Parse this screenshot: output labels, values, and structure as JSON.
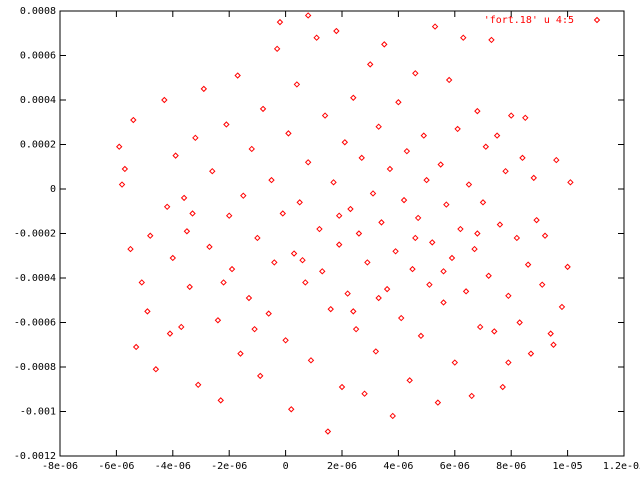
{
  "chart_data": {
    "type": "scatter",
    "series": [
      {
        "name": "'fort.18' u 4:5",
        "color": "#ff0000",
        "x": [
          -5.9e-06,
          -5.8e-06,
          -5.5e-06,
          -5.4e-06,
          -5.3e-06,
          -5.1e-06,
          -4.9e-06,
          -4.6e-06,
          -4.3e-06,
          -4.2e-06,
          -4e-06,
          -3.9e-06,
          -3.7e-06,
          -3.5e-06,
          -3.4e-06,
          -3.2e-06,
          -3.1e-06,
          -2.9e-06,
          -2.7e-06,
          -2.6e-06,
          -2.4e-06,
          -2.3e-06,
          -2.1e-06,
          -2e-06,
          -1.9e-06,
          -1.7e-06,
          -1.6e-06,
          -1.5e-06,
          -1.3e-06,
          -1.2e-06,
          -1e-06,
          -9e-07,
          -8e-07,
          -6e-07,
          -5e-07,
          -4e-07,
          -3e-07,
          -1e-07,
          0,
          1e-07,
          2e-07,
          3e-07,
          4e-07,
          5e-07,
          7e-07,
          8e-07,
          9e-07,
          1.1e-06,
          1.2e-06,
          1.3e-06,
          1.4e-06,
          1.5e-06,
          1.6e-06,
          1.7e-06,
          1.8e-06,
          1.9e-06,
          2e-06,
          2.1e-06,
          2.2e-06,
          2.3e-06,
          2.4e-06,
          2.5e-06,
          2.6e-06,
          2.7e-06,
          2.8e-06,
          2.9e-06,
          3e-06,
          3.1e-06,
          3.2e-06,
          3.3e-06,
          3.4e-06,
          3.5e-06,
          3.6e-06,
          3.7e-06,
          3.8e-06,
          3.9e-06,
          4e-06,
          4.1e-06,
          4.2e-06,
          4.3e-06,
          4.4e-06,
          4.5e-06,
          4.6e-06,
          4.7e-06,
          4.8e-06,
          4.9e-06,
          5e-06,
          5.1e-06,
          5.2e-06,
          5.3e-06,
          5.4e-06,
          5.5e-06,
          5.6e-06,
          5.7e-06,
          5.8e-06,
          5.9e-06,
          6e-06,
          6.1e-06,
          6.2e-06,
          6.3e-06,
          6.4e-06,
          6.5e-06,
          6.6e-06,
          6.7e-06,
          6.8e-06,
          6.9e-06,
          7e-06,
          7.1e-06,
          7.2e-06,
          7.3e-06,
          7.4e-06,
          7.5e-06,
          7.6e-06,
          7.7e-06,
          7.8e-06,
          7.9e-06,
          8e-06,
          8.2e-06,
          8.3e-06,
          8.4e-06,
          8.5e-06,
          8.6e-06,
          8.7e-06,
          8.8e-06,
          8.9e-06,
          9.1e-06,
          9.2e-06,
          9.4e-06,
          9.6e-06,
          9.8e-06,
          1.01e-05,
          1e-05,
          -5.7e-06,
          -4.8e-06,
          -4.1e-06,
          -3.3e-06,
          -2.2e-06,
          -1.1e-06,
          6e-07,
          1.9e-06,
          3.3e-06,
          4.6e-06,
          5.6e-06,
          6.8e-06,
          -2e-07,
          8e-07,
          7.9e-06,
          9.5e-06,
          -3.6e-06,
          2.4e-06
        ],
        "values": [
          0.00019,
          2e-05,
          -0.00027,
          0.00031,
          -0.00071,
          -0.00042,
          -0.00055,
          -0.00081,
          0.0004,
          -8e-05,
          -0.00031,
          0.00015,
          -0.00062,
          -0.00019,
          -0.00044,
          0.00023,
          -0.00088,
          0.00045,
          -0.00026,
          8e-05,
          -0.00059,
          -0.00095,
          0.00029,
          -0.00012,
          -0.00036,
          0.00051,
          -0.00074,
          -3e-05,
          -0.00049,
          0.00018,
          -0.00022,
          -0.00084,
          0.00036,
          -0.00056,
          4e-05,
          -0.00033,
          0.00063,
          -0.00011,
          -0.00068,
          0.00025,
          -0.00099,
          -0.00029,
          0.00047,
          -6e-05,
          -0.00042,
          0.00012,
          -0.00077,
          0.00068,
          -0.00018,
          -0.00037,
          0.00033,
          -0.00109,
          -0.00054,
          3e-05,
          0.00071,
          -0.00025,
          -0.00089,
          0.00021,
          -0.00047,
          -9e-05,
          0.00041,
          -0.00063,
          -0.0002,
          0.00014,
          -0.00092,
          -0.00033,
          0.00056,
          -2e-05,
          -0.00073,
          0.00028,
          -0.00015,
          0.00065,
          -0.00045,
          9e-05,
          -0.00102,
          -0.00028,
          0.00039,
          -0.00058,
          -5e-05,
          0.00017,
          -0.00086,
          -0.00036,
          0.00052,
          -0.00013,
          -0.00066,
          0.00024,
          4e-05,
          -0.00043,
          -0.00024,
          0.00073,
          -0.00096,
          0.00011,
          -0.00051,
          -7e-05,
          0.00049,
          -0.00031,
          -0.00078,
          0.00027,
          -0.00018,
          0.00068,
          -0.00046,
          2e-05,
          -0.00093,
          -0.00027,
          0.00035,
          -0.00062,
          -6e-05,
          0.00019,
          -0.00039,
          0.00067,
          -0.00064,
          0.00024,
          -0.00016,
          -0.00089,
          8e-05,
          -0.00048,
          0.00033,
          -0.00022,
          -0.0006,
          0.00014,
          0.00032,
          -0.00034,
          -0.00074,
          5e-05,
          -0.00014,
          -0.00043,
          -0.00021,
          -0.00065,
          0.00013,
          -0.00053,
          3e-05,
          -0.00035,
          9e-05,
          -0.00021,
          -0.00065,
          -0.00011,
          -0.00042,
          -0.00063,
          -0.00032,
          -0.00012,
          -0.00049,
          -0.00022,
          -0.00037,
          -0.0002,
          0.00075,
          0.00078,
          -0.00078,
          -0.0007,
          -4e-05,
          -0.00055
        ]
      }
    ],
    "xlim": [
      -8e-06,
      1.2e-05
    ],
    "xticks": [
      {
        "value": -8e-06,
        "label": "-8e-06"
      },
      {
        "value": -6e-06,
        "label": "-6e-06"
      },
      {
        "value": -4e-06,
        "label": "-4e-06"
      },
      {
        "value": -2e-06,
        "label": "-2e-06"
      },
      0,
      {
        "value": 2e-06,
        "label": "2e-06"
      },
      {
        "value": 4e-06,
        "label": "4e-06"
      },
      {
        "value": 6e-06,
        "label": "6e-06"
      },
      {
        "value": 8e-06,
        "label": "8e-06"
      },
      {
        "value": 1e-05,
        "label": "1e-05"
      },
      {
        "value": 1.2e-05,
        "label": "1.2e-05"
      }
    ],
    "ylim": [
      -0.0012,
      0.0008
    ],
    "yticks": [
      -0.0012,
      -0.001,
      -0.0008,
      -0.0006,
      -0.0004,
      -0.0002,
      0,
      0.0002,
      0.0004,
      0.0006,
      0.0008
    ],
    "legend": "upper right"
  }
}
